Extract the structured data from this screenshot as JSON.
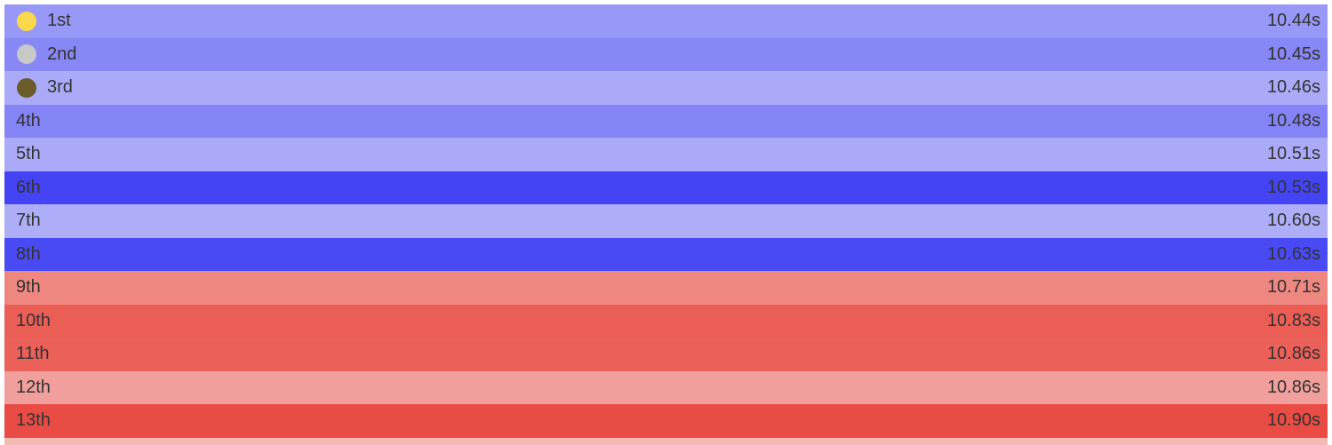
{
  "rows": [
    {
      "place": "1st",
      "time": "10.44s",
      "color": "#9898f8",
      "medal": "#f9d84a"
    },
    {
      "place": "2nd",
      "time": "10.45s",
      "color": "#8787f5",
      "medal": "#c8c8c8"
    },
    {
      "place": "3rd",
      "time": "10.46s",
      "color": "#aaaaf8",
      "medal": "#6b5a2a"
    },
    {
      "place": "4th",
      "time": "10.48s",
      "color": "#8484f7"
    },
    {
      "place": "5th",
      "time": "10.51s",
      "color": "#aaaaf8"
    },
    {
      "place": "6th",
      "time": "10.53s",
      "color": "#4444f5"
    },
    {
      "place": "7th",
      "time": "10.60s",
      "color": "#aeaef8"
    },
    {
      "place": "8th",
      "time": "10.63s",
      "color": "#4a4af5"
    },
    {
      "place": "9th",
      "time": "10.71s",
      "color": "#ef8781"
    },
    {
      "place": "10th",
      "time": "10.83s",
      "color": "#eb5e56"
    },
    {
      "place": "11th",
      "time": "10.86s",
      "color": "#eb6059"
    },
    {
      "place": "12th",
      "time": "10.86s",
      "color": "#f09f9c"
    },
    {
      "place": "13th",
      "time": "10.90s",
      "color": "#e94c45"
    }
  ]
}
